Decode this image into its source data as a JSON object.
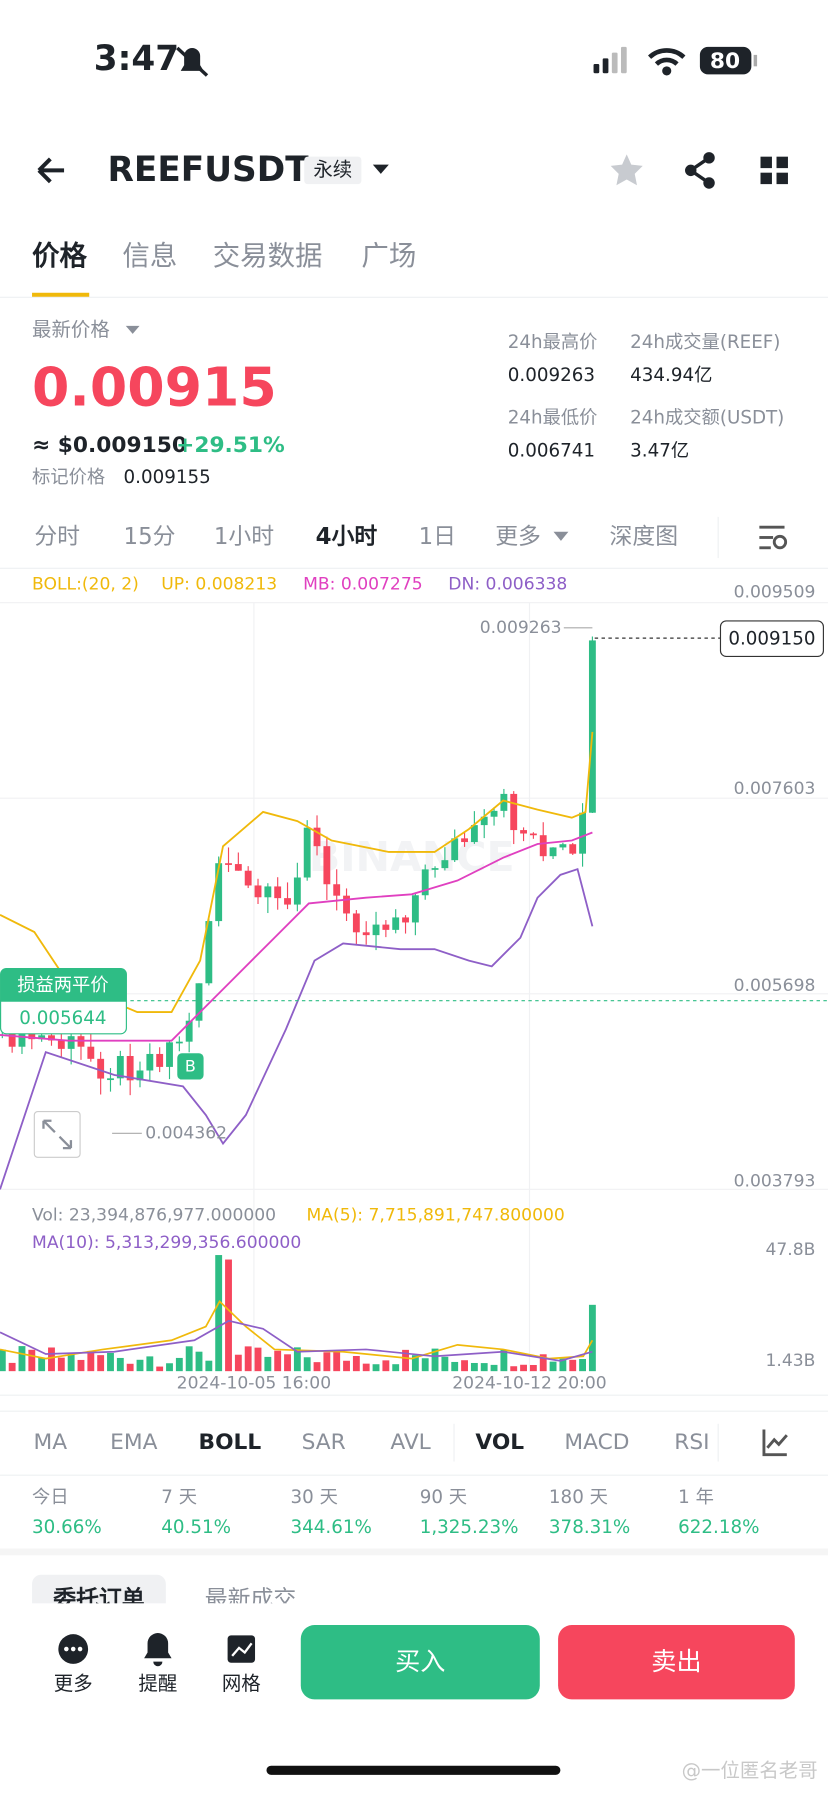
{
  "status": {
    "time": "3:47",
    "battery": "80"
  },
  "header": {
    "symbol": "REEFUSDT",
    "tag": "永续"
  },
  "tabs": [
    "价格",
    "信息",
    "交易数据",
    "广场"
  ],
  "price": {
    "label": "最新价格",
    "last": "0.00915",
    "usd": "≈ $0.009150",
    "change": "+29.51%",
    "mark_label": "标记价格",
    "mark": "0.009155"
  },
  "stats": [
    {
      "label": "24h最高价",
      "value": "0.009263"
    },
    {
      "label": "24h成交量(REEF)",
      "value": "434.94亿"
    },
    {
      "label": "24h最低价",
      "value": "0.006741"
    },
    {
      "label": "24h成交额(USDT)",
      "value": "3.47亿"
    }
  ],
  "intervals": [
    "分时",
    "15分",
    "1小时",
    "4小时",
    "1日",
    "更多",
    "深度图"
  ],
  "boll": {
    "name": "BOLL:(20, 2)",
    "up": "UP: 0.008213",
    "mb": "MB: 0.007275",
    "dn": "DN: 0.006338"
  },
  "price_axis": [
    "0.009509",
    "0.007603",
    "0.005698",
    "0.003793"
  ],
  "annotations": {
    "high": "0.009263",
    "current": "0.009150",
    "breakeven_label": "损益两平价",
    "breakeven": "0.005644",
    "low": "0.004362",
    "buy_marker": "B",
    "watermark_logo": "BINANCE"
  },
  "volume": {
    "vol": "Vol: 23,394,876,977.000000",
    "ma5": "MA(5): 7,715,891,747.800000",
    "ma10": "MA(10): 5,313,299,356.600000",
    "axis_top": "47.8B",
    "axis_bottom": "1.43B"
  },
  "dates": [
    "2024-10-05 16:00",
    "2024-10-12 20:00"
  ],
  "indicators": [
    "MA",
    "EMA",
    "BOLL",
    "SAR",
    "AVL",
    "VOL",
    "MACD",
    "RSI"
  ],
  "performance": [
    {
      "period": "今日",
      "value": "30.66%"
    },
    {
      "period": "7 天",
      "value": "40.51%"
    },
    {
      "period": "30 天",
      "value": "344.61%"
    },
    {
      "period": "90 天",
      "value": "1,325.23%"
    },
    {
      "period": "180 天",
      "value": "378.31%"
    },
    {
      "period": "1 年",
      "value": "622.18%"
    }
  ],
  "order_tabs": [
    "委托订单",
    "最新成交"
  ],
  "bottom_nav": [
    "更多",
    "提醒",
    "网格"
  ],
  "actions": {
    "buy": "买入",
    "sell": "卖出"
  },
  "watermark": "@一位匿名老哥"
}
